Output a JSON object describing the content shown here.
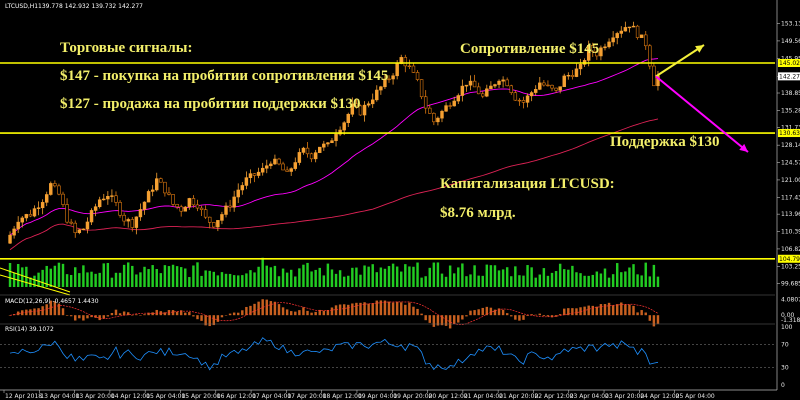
{
  "chart_data": {
    "type": "candlestick",
    "symbol_header": "LTCUSD,H1",
    "ohlc_header": [
      "139.778",
      "142.932",
      "139.732",
      "142.277"
    ],
    "price_axis": {
      "ylim": [
        99.0,
        155.5
      ],
      "ticks": [
        "153.130",
        "149.560",
        "145.955",
        "142.277",
        "138.855",
        "135.280",
        "131.735",
        "128.140",
        "124.575",
        "121.000",
        "117.430",
        "113.965",
        "110.395",
        "106.825",
        "103.255",
        "99.685"
      ],
      "tick_values": [
        153.13,
        149.56,
        145.955,
        142.277,
        138.855,
        135.28,
        131.735,
        128.14,
        124.575,
        121.0,
        117.43,
        113.965,
        110.395,
        106.825,
        103.255,
        99.685
      ],
      "price_tags": [
        {
          "label": "145.021",
          "value": 145.021,
          "color": "#ffff00"
        },
        {
          "label": "142.277",
          "value": 142.277,
          "color": "#ffffff"
        },
        {
          "label": "130.632",
          "value": 130.632,
          "color": "#ffff00"
        },
        {
          "label": "104.799",
          "value": 104.799,
          "color": "#ffff00"
        }
      ]
    },
    "time_labels": [
      "12 Apr 2018",
      "13 Apr 04:00",
      "13 Apr 20:00",
      "14 Apr 12:00",
      "15 Apr 04:00",
      "15 Apr 20:00",
      "16 Apr 12:00",
      "17 Apr 04:00",
      "17 Apr 20:00",
      "18 Apr 12:00",
      "19 Apr 04:00",
      "19 Apr 20:00",
      "20 Apr 12:00",
      "21 Apr 04:00",
      "21 Apr 20:00",
      "22 Apr 12:00",
      "23 Apr 04:00",
      "23 Apr 20:00",
      "24 Apr 12:00",
      "25 Apr 04:00"
    ],
    "price_path": [
      [
        0,
        108
      ],
      [
        3,
        113
      ],
      [
        6,
        114
      ],
      [
        9,
        117
      ],
      [
        11,
        120
      ],
      [
        13,
        118
      ],
      [
        15,
        113
      ],
      [
        17,
        110
      ],
      [
        19,
        111
      ],
      [
        21,
        114
      ],
      [
        23,
        117
      ],
      [
        25,
        118
      ],
      [
        27,
        116
      ],
      [
        29,
        113
      ],
      [
        31,
        112
      ],
      [
        33,
        115
      ],
      [
        35,
        118
      ],
      [
        37,
        121
      ],
      [
        39,
        119
      ],
      [
        41,
        116
      ],
      [
        43,
        115
      ],
      [
        45,
        117
      ],
      [
        47,
        116
      ],
      [
        49,
        113
      ],
      [
        51,
        112
      ],
      [
        53,
        114
      ],
      [
        55,
        116
      ],
      [
        57,
        119
      ],
      [
        59,
        121
      ],
      [
        61,
        122
      ],
      [
        63,
        123
      ],
      [
        65,
        125
      ],
      [
        67,
        124
      ],
      [
        69,
        122
      ],
      [
        71,
        125
      ],
      [
        73,
        127
      ],
      [
        75,
        126
      ],
      [
        77,
        128
      ],
      [
        79,
        128
      ],
      [
        81,
        131
      ],
      [
        83,
        133
      ],
      [
        85,
        136
      ],
      [
        87,
        135
      ],
      [
        89,
        137
      ],
      [
        91,
        139
      ],
      [
        93,
        141
      ],
      [
        95,
        143
      ],
      [
        97,
        146
      ],
      [
        99,
        144
      ],
      [
        101,
        141
      ],
      [
        103,
        136
      ],
      [
        105,
        133
      ],
      [
        107,
        135
      ],
      [
        109,
        137
      ],
      [
        111,
        139
      ],
      [
        113,
        141
      ],
      [
        115,
        140
      ],
      [
        117,
        138
      ],
      [
        119,
        140
      ],
      [
        121,
        142
      ],
      [
        123,
        141
      ],
      [
        125,
        138
      ],
      [
        127,
        137
      ],
      [
        129,
        139
      ],
      [
        131,
        141
      ],
      [
        133,
        140
      ],
      [
        135,
        139
      ],
      [
        137,
        142
      ],
      [
        139,
        143
      ],
      [
        141,
        144
      ],
      [
        143,
        148
      ],
      [
        145,
        147
      ],
      [
        147,
        149
      ],
      [
        149,
        151
      ],
      [
        151,
        152
      ],
      [
        153,
        153
      ],
      [
        155,
        151
      ],
      [
        157,
        149
      ],
      [
        158,
        145
      ],
      [
        159,
        141
      ],
      [
        160,
        142.277
      ]
    ],
    "bar_count": 160,
    "ma_fast_color": "#ff00ff",
    "ma_slow_color": "#dd2255",
    "bull_color": "#f5a032",
    "bear_color": "#e07a10",
    "annotations": {
      "signals_title": "Торговые сигналы:",
      "buy_signal": "$147 - покупка на пробитии сопротивления $145",
      "sell_signal": "$127 - продажа на пробитии поддержки $130",
      "resistance_label": "Сопротивление $145",
      "support_label": "Поддержка $130",
      "cap_title": "Капитализация LTCUSD:",
      "cap_value": "$8.76 млрд."
    },
    "levels": {
      "resistance": 145.021,
      "support": 130.632,
      "lower": 104.799
    },
    "arrow_up_color": "#f3ef3a",
    "arrow_down_color": "#ff00ff",
    "macd": {
      "label": "MACD(12,26,9) -0.4657 1.4430",
      "ticks": [
        "4.0807",
        "0.00",
        "-1.3187"
      ],
      "tick_values": [
        4.0807,
        0.0,
        -1.3187
      ],
      "ylim": [
        -1.8,
        4.8
      ],
      "signal_color": "#ff3333",
      "hist_color": "#c86020"
    },
    "rsi": {
      "label": "RSI(14) 39.1072",
      "ticks": [
        "100",
        "70",
        "30",
        "0"
      ],
      "tick_values": [
        100,
        70,
        30,
        0
      ],
      "ylim": [
        0,
        100
      ],
      "line_color": "#1e90ff",
      "last_value": 39.1072
    },
    "volume": {
      "color": "#22cc22",
      "ylim": [
        0,
        100
      ]
    }
  }
}
